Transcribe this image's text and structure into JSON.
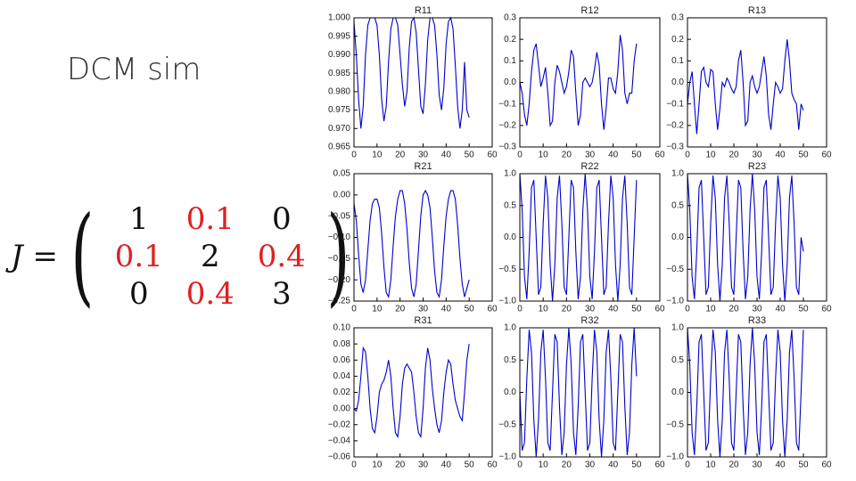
{
  "slide": {
    "title": "DCM sim",
    "lhs": "J =",
    "matrix": [
      [
        "1",
        "0.1",
        "0"
      ],
      [
        "0.1",
        "2",
        "0.4"
      ],
      [
        "0",
        "0.4",
        "3"
      ]
    ]
  },
  "chart_data": [
    {
      "type": "line",
      "title": "R11",
      "color": "#0000cc",
      "x": [
        0,
        1,
        2,
        3,
        4,
        5,
        6,
        7,
        8,
        9,
        10,
        11,
        12,
        13,
        14,
        15,
        16,
        17,
        18,
        19,
        20,
        21,
        22,
        23,
        24,
        25,
        26,
        27,
        28,
        29,
        30,
        31,
        32,
        33,
        34,
        35,
        36,
        37,
        38,
        39,
        40,
        41,
        42,
        43,
        44,
        45,
        46,
        47,
        48,
        49,
        50
      ],
      "values": [
        0.999,
        0.99,
        0.978,
        0.97,
        0.976,
        0.99,
        0.998,
        1.0,
        1.0,
        1.0,
        0.998,
        0.99,
        0.978,
        0.972,
        0.976,
        0.988,
        0.997,
        1.0,
        1.0,
        0.998,
        0.99,
        0.982,
        0.976,
        0.98,
        0.992,
        0.999,
        1.0,
        0.996,
        0.986,
        0.976,
        0.974,
        0.982,
        0.994,
        1.0,
        1.0,
        0.998,
        0.99,
        0.979,
        0.975,
        0.981,
        0.993,
        0.999,
        1.0,
        0.997,
        0.987,
        0.976,
        0.97,
        0.975,
        0.988,
        0.975,
        0.973
      ],
      "xlim": [
        0,
        60
      ],
      "xticks": [
        0,
        10,
        20,
        30,
        40,
        50,
        60
      ],
      "ylim": [
        0.965,
        1.0
      ],
      "yticks": [
        0.965,
        {
          "value": 0.97,
          "label": "0.970"
        },
        0.975,
        {
          "value": 0.98,
          "label": "0.980"
        },
        0.985,
        {
          "value": 0.99,
          "label": "0.990"
        },
        0.995,
        {
          "value": 1,
          "label": "1.000"
        }
      ]
    },
    {
      "type": "line",
      "title": "R12",
      "color": "#0000cc",
      "x": [
        0,
        1,
        2,
        3,
        4,
        5,
        6,
        7,
        8,
        9,
        10,
        11,
        12,
        13,
        14,
        15,
        16,
        17,
        18,
        19,
        20,
        21,
        22,
        23,
        24,
        25,
        26,
        27,
        28,
        29,
        30,
        31,
        32,
        33,
        34,
        35,
        36,
        37,
        38,
        39,
        40,
        41,
        42,
        43,
        44,
        45,
        46,
        47,
        48,
        49,
        50
      ],
      "values": [
        0,
        -0.05,
        -0.15,
        -0.2,
        -0.1,
        0.05,
        0.15,
        0.18,
        0.08,
        -0.02,
        0.02,
        0.07,
        -0.05,
        -0.2,
        -0.18,
        0.0,
        0.08,
        0.05,
        0.0,
        -0.05,
        -0.02,
        0.05,
        0.15,
        0.12,
        -0.05,
        -0.2,
        -0.15,
        0.0,
        0.02,
        0.0,
        -0.02,
        0.0,
        0.06,
        0.14,
        0.08,
        -0.1,
        -0.22,
        -0.12,
        0.02,
        0.02,
        -0.03,
        -0.05,
        0.05,
        0.22,
        0.15,
        -0.05,
        -0.1,
        -0.05,
        -0.05,
        0.1,
        0.18
      ],
      "xlim": [
        0,
        60
      ],
      "xticks": [
        0,
        10,
        20,
        30,
        40,
        50,
        60
      ],
      "ylim": [
        -0.3,
        0.3
      ],
      "yticks": [
        {
          "value": -0.3,
          "label": "−0.3"
        },
        {
          "value": -0.2,
          "label": "−0.2"
        },
        {
          "value": -0.1,
          "label": "−0.1"
        },
        {
          "value": 0,
          "label": "0.0"
        },
        0.1,
        0.2,
        0.3
      ]
    },
    {
      "type": "line",
      "title": "R13",
      "color": "#0000cc",
      "x": [
        0,
        1,
        2,
        3,
        4,
        5,
        6,
        7,
        8,
        9,
        10,
        11,
        12,
        13,
        14,
        15,
        16,
        17,
        18,
        19,
        20,
        21,
        22,
        23,
        24,
        25,
        26,
        27,
        28,
        29,
        30,
        31,
        32,
        33,
        34,
        35,
        36,
        37,
        38,
        39,
        40,
        41,
        42,
        43,
        44,
        45,
        46,
        47,
        48,
        49,
        50
      ],
      "values": [
        -0.1,
        0.0,
        0.05,
        -0.1,
        -0.24,
        -0.1,
        0.05,
        0.07,
        0.0,
        -0.02,
        0.06,
        0.05,
        -0.1,
        -0.22,
        -0.12,
        0.0,
        -0.02,
        0.02,
        0.0,
        -0.03,
        -0.05,
        -0.02,
        0.1,
        0.15,
        0.0,
        -0.2,
        -0.18,
        0.0,
        0.03,
        -0.02,
        -0.05,
        -0.02,
        0.05,
        0.12,
        0.03,
        -0.15,
        -0.22,
        -0.1,
        0.0,
        -0.02,
        -0.05,
        -0.03,
        0.1,
        0.2,
        0.1,
        -0.05,
        -0.08,
        -0.1,
        -0.22,
        -0.1,
        -0.13
      ],
      "xlim": [
        0,
        60
      ],
      "xticks": [
        0,
        10,
        20,
        30,
        40,
        50,
        60
      ],
      "ylim": [
        -0.3,
        0.3
      ],
      "yticks": [
        {
          "value": -0.3,
          "label": "−0.3"
        },
        {
          "value": -0.2,
          "label": "−0.2"
        },
        {
          "value": -0.1,
          "label": "−0.1"
        },
        {
          "value": 0,
          "label": "0.0"
        },
        0.1,
        0.2,
        0.3
      ]
    },
    {
      "type": "line",
      "title": "R21",
      "color": "#0000cc",
      "x": [
        0,
        1,
        2,
        3,
        4,
        5,
        6,
        7,
        8,
        9,
        10,
        11,
        12,
        13,
        14,
        15,
        16,
        17,
        18,
        19,
        20,
        21,
        22,
        23,
        24,
        25,
        26,
        27,
        28,
        29,
        30,
        31,
        32,
        33,
        34,
        35,
        36,
        37,
        38,
        39,
        40,
        41,
        42,
        43,
        44,
        45,
        46,
        47,
        48,
        49,
        50
      ],
      "values": [
        -0.02,
        -0.06,
        -0.14,
        -0.21,
        -0.23,
        -0.2,
        -0.13,
        -0.06,
        -0.02,
        -0.01,
        -0.01,
        -0.03,
        -0.09,
        -0.17,
        -0.23,
        -0.24,
        -0.2,
        -0.12,
        -0.05,
        -0.01,
        0.01,
        0.01,
        -0.02,
        -0.08,
        -0.16,
        -0.22,
        -0.24,
        -0.21,
        -0.13,
        -0.05,
        0,
        0.01,
        0,
        -0.03,
        -0.1,
        -0.18,
        -0.23,
        -0.24,
        -0.2,
        -0.12,
        -0.05,
        -0.01,
        0.01,
        0.01,
        -0.01,
        -0.07,
        -0.15,
        -0.21,
        -0.24,
        -0.22,
        -0.2
      ],
      "xlim": [
        0,
        60
      ],
      "xticks": [
        0,
        10,
        20,
        30,
        40,
        50,
        60
      ],
      "ylim": [
        -0.25,
        0.05
      ],
      "yticks": [
        {
          "value": -0.25,
          "label": "−0.25"
        },
        {
          "value": -0.2,
          "label": "−0.20"
        },
        {
          "value": -0.15,
          "label": "−0.15"
        },
        {
          "value": -0.1,
          "label": "−0.10"
        },
        {
          "value": -0.05,
          "label": "−0.05"
        },
        {
          "value": 0,
          "label": "0.00"
        },
        0.05
      ]
    },
    {
      "type": "line",
      "title": "R22",
      "color": "#0000cc",
      "x": [
        0,
        1,
        2,
        3,
        4,
        5,
        6,
        7,
        8,
        9,
        10,
        11,
        12,
        13,
        14,
        15,
        16,
        17,
        18,
        19,
        20,
        21,
        22,
        23,
        24,
        25,
        26,
        27,
        28,
        29,
        30,
        31,
        32,
        33,
        34,
        35,
        36,
        37,
        38,
        39,
        40,
        41,
        42,
        43,
        44,
        45,
        46,
        47,
        48,
        49,
        50
      ],
      "values": [
        1,
        0.43,
        -0.62,
        -0.97,
        -0.22,
        0.78,
        0.9,
        0,
        -0.9,
        -0.78,
        0.22,
        0.97,
        0.62,
        -0.43,
        -1,
        -0.43,
        0.62,
        0.97,
        0.22,
        -0.78,
        -0.9,
        0,
        0.9,
        0.78,
        -0.22,
        -0.97,
        -0.62,
        0.43,
        1,
        0.43,
        -0.62,
        -0.97,
        -0.22,
        0.78,
        0.9,
        0,
        -0.9,
        -0.78,
        0.22,
        0.97,
        0.62,
        -0.43,
        -1,
        -0.43,
        0.62,
        0.97,
        0.22,
        -0.78,
        -0.9,
        0,
        0.9
      ],
      "xlim": [
        0,
        60
      ],
      "xticks": [
        0,
        10,
        20,
        30,
        40,
        50,
        60
      ],
      "ylim": [
        -1,
        1
      ],
      "yticks": [
        {
          "value": -1,
          "label": "−1.0"
        },
        {
          "value": -0.5,
          "label": "−0.5"
        },
        {
          "value": 0,
          "label": "0.0"
        },
        0.5,
        {
          "value": 1,
          "label": "1.0"
        }
      ]
    },
    {
      "type": "line",
      "title": "R23",
      "color": "#0000cc",
      "x": [
        0,
        1,
        2,
        3,
        4,
        5,
        6,
        7,
        8,
        9,
        10,
        11,
        12,
        13,
        14,
        15,
        16,
        17,
        18,
        19,
        20,
        21,
        22,
        23,
        24,
        25,
        26,
        27,
        28,
        29,
        30,
        31,
        32,
        33,
        34,
        35,
        36,
        37,
        38,
        39,
        40,
        41,
        42,
        43,
        44,
        45,
        46,
        47,
        48,
        49,
        50
      ],
      "values": [
        1,
        0.43,
        -0.62,
        -0.97,
        -0.22,
        0.78,
        0.9,
        0,
        -0.9,
        -0.78,
        0.22,
        0.97,
        0.62,
        -0.43,
        -1,
        -0.43,
        0.62,
        0.97,
        0.22,
        -0.78,
        -0.9,
        0,
        0.9,
        0.78,
        -0.22,
        -0.97,
        -0.62,
        0.43,
        1,
        0.43,
        -0.62,
        -0.97,
        -0.22,
        0.78,
        0.9,
        0,
        -0.9,
        -0.78,
        0.22,
        0.97,
        0.62,
        -0.43,
        -1,
        -0.43,
        0.62,
        0.97,
        0.22,
        -0.78,
        -0.9,
        0,
        -0.22
      ],
      "xlim": [
        0,
        60
      ],
      "xticks": [
        0,
        10,
        20,
        30,
        40,
        50,
        60
      ],
      "ylim": [
        -1,
        1
      ],
      "yticks": [
        {
          "value": -1,
          "label": "−1.0"
        },
        {
          "value": -0.5,
          "label": "−0.5"
        },
        {
          "value": 0,
          "label": "0.0"
        },
        0.5,
        {
          "value": 1,
          "label": "1.0"
        }
      ]
    },
    {
      "type": "line",
      "title": "R31",
      "color": "#0000cc",
      "x": [
        0,
        1,
        2,
        3,
        4,
        5,
        6,
        7,
        8,
        9,
        10,
        11,
        12,
        13,
        14,
        15,
        16,
        17,
        18,
        19,
        20,
        21,
        22,
        23,
        24,
        25,
        26,
        27,
        28,
        29,
        30,
        31,
        32,
        33,
        34,
        35,
        36,
        37,
        38,
        39,
        40,
        41,
        42,
        43,
        44,
        45,
        46,
        47,
        48,
        49,
        50
      ],
      "values": [
        0.0,
        -0.003,
        0.01,
        0.04,
        0.075,
        0.07,
        0.04,
        0.0,
        -0.025,
        -0.03,
        -0.01,
        0.02,
        0.03,
        0.035,
        0.045,
        0.06,
        0.04,
        0.0,
        -0.03,
        -0.035,
        -0.01,
        0.03,
        0.05,
        0.055,
        0.05,
        0.045,
        0.02,
        -0.01,
        -0.03,
        -0.035,
        0.0,
        0.05,
        0.075,
        0.06,
        0.025,
        0.0,
        -0.02,
        -0.03,
        -0.015,
        0.02,
        0.045,
        0.06,
        0.055,
        0.03,
        0.01,
        0.0,
        -0.01,
        -0.015,
        0.02,
        0.06,
        0.08
      ],
      "xlim": [
        0,
        60
      ],
      "xticks": [
        0,
        10,
        20,
        30,
        40,
        50,
        60
      ],
      "ylim": [
        -0.06,
        0.1
      ],
      "yticks": [
        {
          "value": -0.06,
          "label": "−0.06"
        },
        {
          "value": -0.04,
          "label": "−0.04"
        },
        {
          "value": -0.02,
          "label": "−0.02"
        },
        {
          "value": 0,
          "label": "0.00"
        },
        0.02,
        0.04,
        0.06,
        0.08,
        {
          "value": 0.1,
          "label": "0.10"
        }
      ]
    },
    {
      "type": "line",
      "title": "R32",
      "color": "#0000cc",
      "x": [
        0,
        1,
        2,
        3,
        4,
        5,
        6,
        7,
        8,
        9,
        10,
        11,
        12,
        13,
        14,
        15,
        16,
        17,
        18,
        19,
        20,
        21,
        22,
        23,
        24,
        25,
        26,
        27,
        28,
        29,
        30,
        31,
        32,
        33,
        34,
        35,
        36,
        37,
        38,
        39,
        40,
        41,
        42,
        43,
        44,
        45,
        46,
        47,
        48,
        49,
        50
      ],
      "values": [
        0,
        -0.9,
        -0.78,
        0.22,
        0.97,
        0.62,
        -0.43,
        -1,
        -0.43,
        0.62,
        0.97,
        0.22,
        -0.78,
        -0.9,
        0,
        0.9,
        0.78,
        -0.22,
        -0.97,
        -0.62,
        0.43,
        1,
        0.43,
        -0.62,
        -0.97,
        -0.22,
        0.78,
        0.9,
        0,
        -0.9,
        -0.78,
        0.22,
        0.97,
        0.62,
        -0.43,
        -1,
        -0.43,
        0.62,
        0.97,
        0.22,
        -0.78,
        -0.9,
        0,
        0.9,
        0.78,
        -0.22,
        -0.97,
        -0.62,
        0.43,
        1,
        0.25
      ],
      "xlim": [
        0,
        60
      ],
      "xticks": [
        0,
        10,
        20,
        30,
        40,
        50,
        60
      ],
      "ylim": [
        -1,
        1
      ],
      "yticks": [
        {
          "value": -1,
          "label": "−1.0"
        },
        {
          "value": -0.5,
          "label": "−0.5"
        },
        {
          "value": 0,
          "label": "0.0"
        },
        0.5,
        {
          "value": 1,
          "label": "1.0"
        }
      ]
    },
    {
      "type": "line",
      "title": "R33",
      "color": "#0000cc",
      "x": [
        0,
        1,
        2,
        3,
        4,
        5,
        6,
        7,
        8,
        9,
        10,
        11,
        12,
        13,
        14,
        15,
        16,
        17,
        18,
        19,
        20,
        21,
        22,
        23,
        24,
        25,
        26,
        27,
        28,
        29,
        30,
        31,
        32,
        33,
        34,
        35,
        36,
        37,
        38,
        39,
        40,
        41,
        42,
        43,
        44,
        45,
        46,
        47,
        48,
        49,
        50
      ],
      "values": [
        1,
        0.43,
        -0.62,
        -0.97,
        -0.22,
        0.78,
        0.9,
        0,
        -0.9,
        -0.78,
        0.22,
        0.97,
        0.62,
        -0.43,
        -1,
        -0.43,
        0.62,
        0.97,
        0.22,
        -0.78,
        -0.9,
        0,
        0.9,
        0.78,
        -0.22,
        -0.97,
        -0.62,
        0.43,
        1,
        0.43,
        -0.62,
        -0.97,
        -0.22,
        0.78,
        0.9,
        0,
        -0.9,
        -0.78,
        0.22,
        0.97,
        0.62,
        -0.43,
        -1,
        -0.43,
        0.62,
        0.97,
        0.22,
        -0.78,
        -0.9,
        0,
        0.97
      ],
      "xlim": [
        0,
        60
      ],
      "xticks": [
        0,
        10,
        20,
        30,
        40,
        50,
        60
      ],
      "ylim": [
        -1,
        1
      ],
      "yticks": [
        {
          "value": -1,
          "label": "−1.0"
        },
        {
          "value": -0.5,
          "label": "−0.5"
        },
        {
          "value": 0,
          "label": "0.0"
        },
        0.5,
        {
          "value": 1,
          "label": "1.0"
        }
      ]
    }
  ]
}
